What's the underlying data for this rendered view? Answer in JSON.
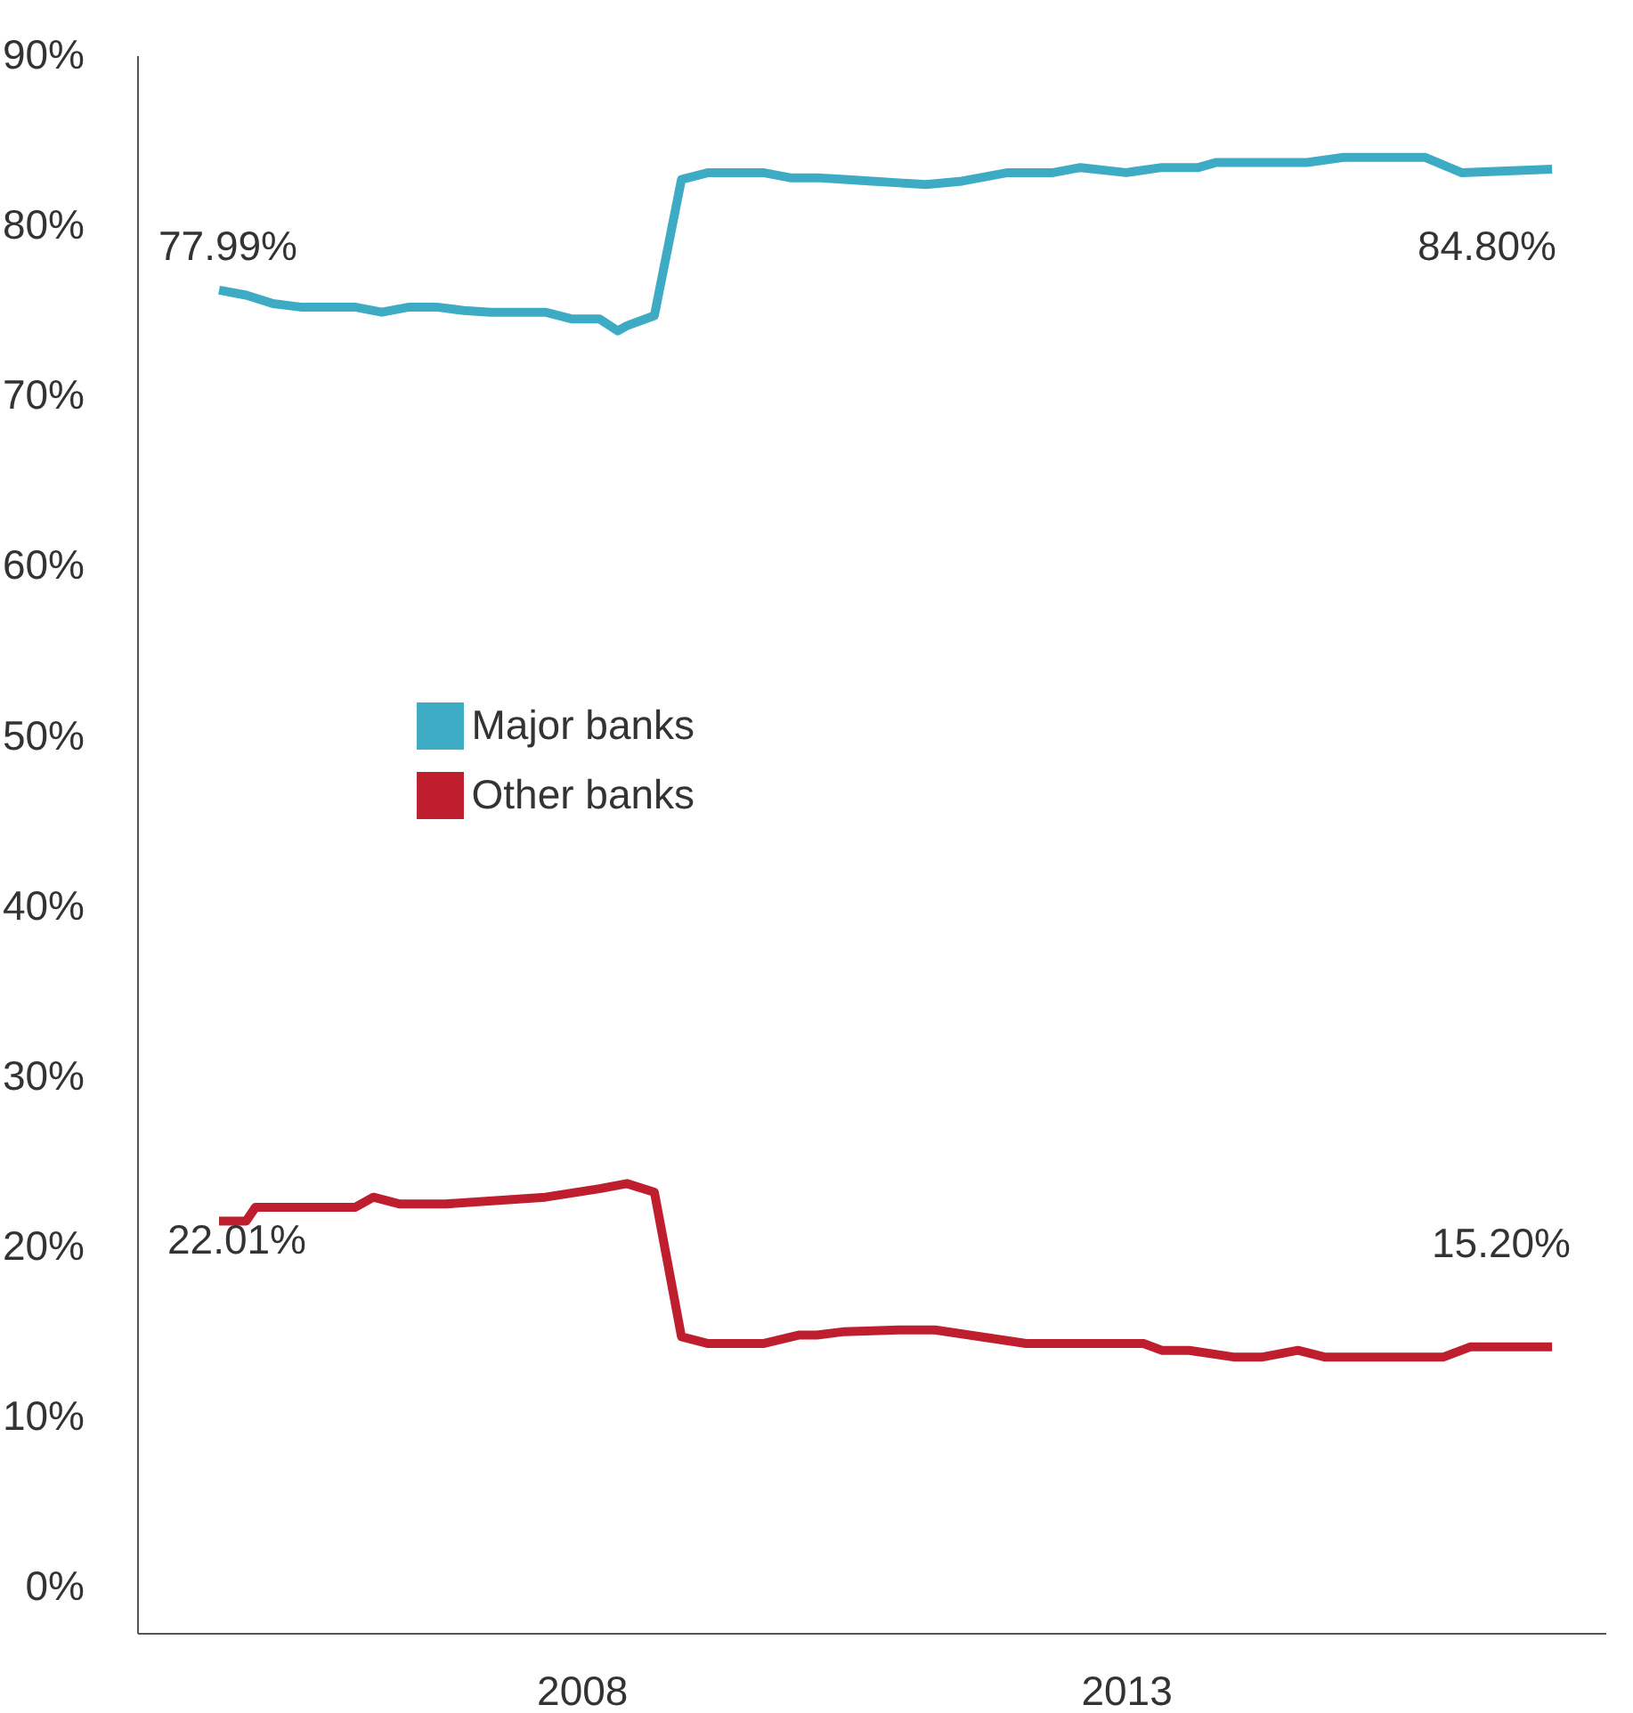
{
  "chart_data": {
    "type": "line",
    "xlim": [
      "2003-12",
      "2017-06"
    ],
    "xticks": [
      "2008",
      "2013"
    ],
    "ylim": [
      -2.7,
      90
    ],
    "yticks": [
      {
        "value": 0,
        "label": "0%"
      },
      {
        "value": 10,
        "label": "10%"
      },
      {
        "value": 20,
        "label": "20%"
      },
      {
        "value": 30,
        "label": "30%"
      },
      {
        "value": 40,
        "label": "40%"
      },
      {
        "value": 50,
        "label": "50%"
      },
      {
        "value": 60,
        "label": "60%"
      },
      {
        "value": 70,
        "label": "70%"
      },
      {
        "value": 80,
        "label": "80%"
      },
      {
        "value": 90,
        "label": "90%"
      }
    ],
    "grid": false,
    "legend": "left",
    "marker": "none",
    "line_style": "solid",
    "series": [
      {
        "name": "Major banks",
        "color": "#3dabc4",
        "x": [
          "2004-09",
          "2004-12",
          "2005-03",
          "2005-06",
          "2005-09",
          "2005-12",
          "2006-03",
          "2006-06",
          "2006-09",
          "2006-12",
          "2007-03",
          "2007-06",
          "2007-09",
          "2007-12",
          "2008-03",
          "2008-05",
          "2008-06",
          "2008-09",
          "2008-12",
          "2009-03",
          "2009-06",
          "2009-09",
          "2009-12",
          "2010-03",
          "2010-06",
          "2010-09",
          "2010-12",
          "2011-03",
          "2011-07",
          "2011-12",
          "2012-05",
          "2012-08",
          "2013-01",
          "2013-05",
          "2013-09",
          "2013-11",
          "2014-09",
          "2015-01",
          "2015-10",
          "2016-02",
          "2016-12"
        ],
        "values": [
          76.2,
          75.9,
          75.4,
          75.2,
          75.2,
          75.2,
          74.9,
          75.2,
          75.2,
          75.0,
          74.9,
          74.9,
          74.9,
          74.5,
          74.5,
          73.8,
          74.1,
          74.7,
          82.7,
          83.1,
          83.1,
          83.1,
          82.8,
          82.8,
          82.7,
          82.6,
          82.5,
          82.4,
          82.6,
          83.1,
          83.1,
          83.4,
          83.1,
          83.4,
          83.4,
          83.7,
          83.7,
          84.0,
          84.0,
          83.1,
          83.3
        ]
      },
      {
        "name": "Other banks",
        "color": "#be1e2d",
        "x": [
          "2004-09",
          "2004-12",
          "2005-01",
          "2005-12",
          "2006-02",
          "2006-05",
          "2006-10",
          "2007-09",
          "2008-03",
          "2008-06",
          "2008-09",
          "2008-12",
          "2009-03",
          "2009-09",
          "2010-01",
          "2010-03",
          "2010-06",
          "2010-12",
          "2011-04",
          "2012-02",
          "2013-03",
          "2013-05",
          "2013-08",
          "2014-01",
          "2014-04",
          "2014-08",
          "2014-11",
          "2015-12",
          "2016-03",
          "2016-12"
        ],
        "values": [
          21.5,
          21.5,
          22.3,
          22.3,
          22.9,
          22.5,
          22.5,
          22.9,
          23.4,
          23.7,
          23.2,
          14.7,
          14.3,
          14.3,
          14.8,
          14.8,
          15.0,
          15.1,
          15.1,
          14.3,
          14.3,
          13.9,
          13.9,
          13.5,
          13.5,
          13.9,
          13.5,
          13.5,
          14.1,
          14.1
        ]
      }
    ],
    "annotations": [
      "77.99%",
      "84.80%",
      "22.01%",
      "15.20%"
    ]
  }
}
